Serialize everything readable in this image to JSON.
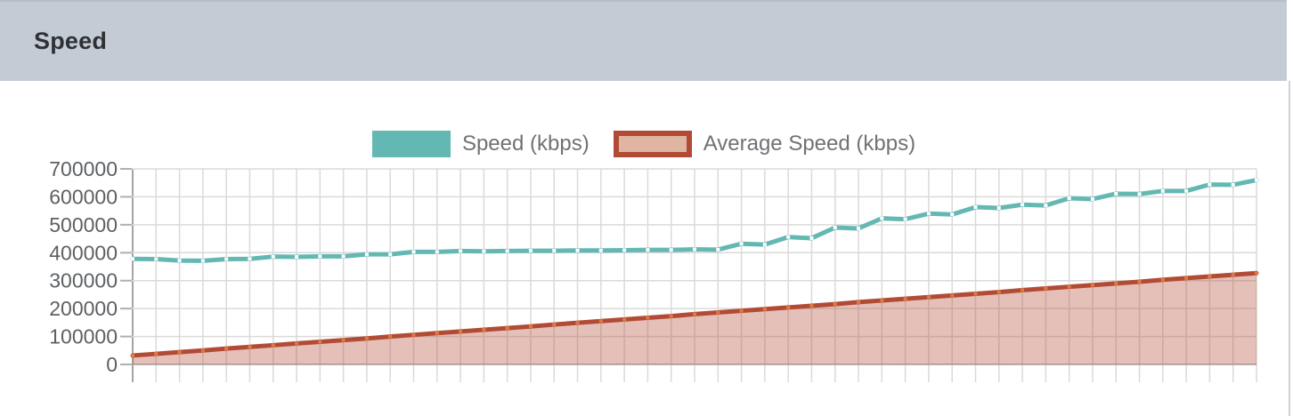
{
  "header": {
    "title": "Speed"
  },
  "legend": {
    "items": [
      {
        "label": "Speed (kbps)",
        "swatch": "teal-solid"
      },
      {
        "label": "Average Speed (kbps)",
        "swatch": "salmon-fill-red-border"
      }
    ]
  },
  "colors": {
    "header_bg": "#c3cbd5",
    "title": "#2f3235",
    "legend_text": "#6f7276",
    "teal": "#64b8b3",
    "red": "#b14b35",
    "red_fill_legend": "#e1b5a3",
    "card_border": "#cdd1d5"
  },
  "chart_data": {
    "type": "line",
    "title": "Speed",
    "xlabel": "",
    "ylabel": "",
    "ylim": [
      0,
      700000
    ],
    "yticks": [
      0,
      100000,
      200000,
      300000,
      400000,
      500000,
      600000,
      700000
    ],
    "x_count": 49,
    "x_tick_labels": [],
    "grid": true,
    "legend_position": "top-center",
    "grid_color": "#dadada",
    "axis_color": "#a5a5a5",
    "tick_color": "#b0b0b0",
    "label_color": "#5d6063",
    "series": [
      {
        "name": "Speed (kbps)",
        "type": "line",
        "color": "#64b8b3",
        "marker_color": "#ffffff",
        "values": [
          378000,
          377000,
          372000,
          371000,
          377000,
          378000,
          386000,
          385000,
          387000,
          387000,
          394000,
          394000,
          403000,
          403000,
          406000,
          405000,
          406000,
          407000,
          407000,
          408000,
          408000,
          409000,
          410000,
          410000,
          412000,
          411000,
          432000,
          429000,
          456000,
          452000,
          490000,
          487000,
          523000,
          520000,
          540000,
          537000,
          563000,
          560000,
          572000,
          569000,
          595000,
          592000,
          611000,
          610000,
          621000,
          621000,
          644000,
          643000,
          660000
        ]
      },
      {
        "name": "Average Speed (kbps)",
        "type": "area",
        "color": "#b14b35",
        "fill": "rgba(177,75,53,0.35)",
        "marker_color": "#e0793f",
        "values": [
          32000,
          38000,
          44000,
          50000,
          57000,
          63000,
          69000,
          75000,
          81000,
          87000,
          93000,
          100000,
          106000,
          112000,
          118000,
          124000,
          130000,
          136000,
          143000,
          149000,
          155000,
          161000,
          167000,
          173000,
          180000,
          186000,
          192000,
          198000,
          204000,
          210000,
          216000,
          223000,
          229000,
          235000,
          241000,
          247000,
          253000,
          259000,
          266000,
          272000,
          278000,
          284000,
          290000,
          296000,
          303000,
          309000,
          315000,
          321000,
          327000
        ]
      }
    ]
  }
}
